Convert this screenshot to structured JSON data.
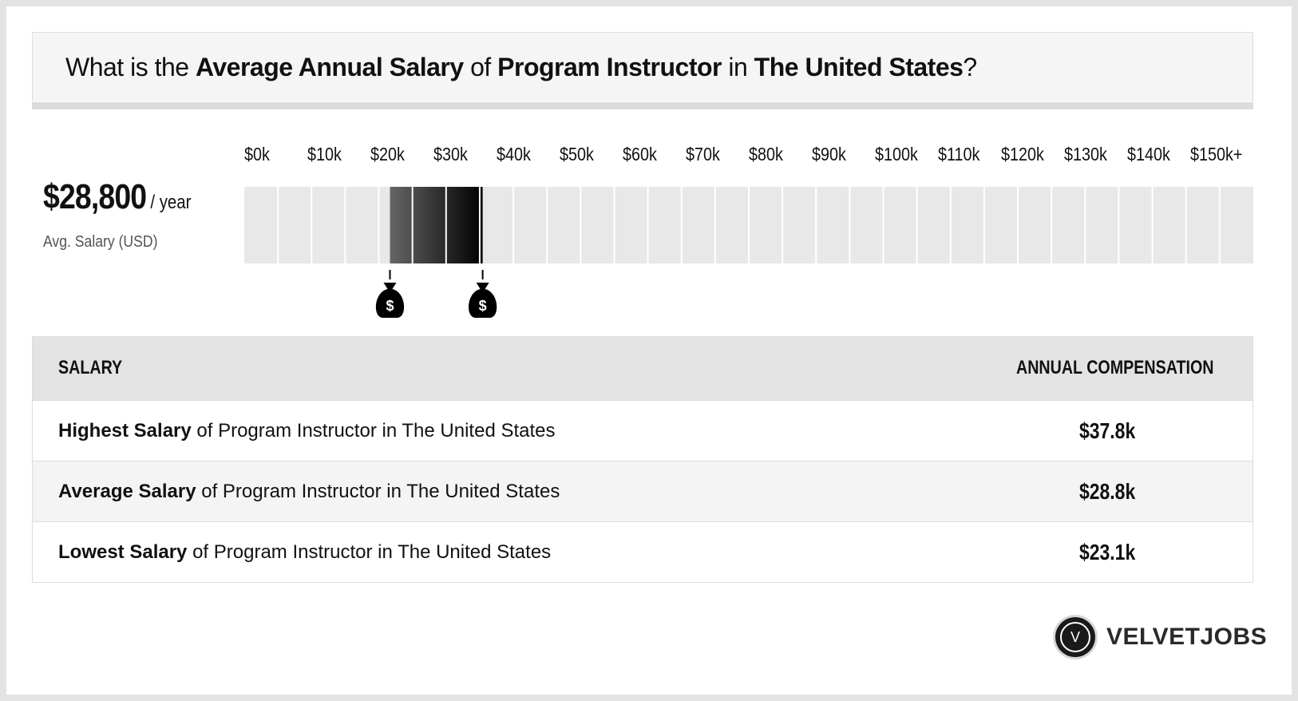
{
  "heading": {
    "part1": "What is the ",
    "bold1": "Average Annual Salary",
    "part2": " of ",
    "bold2": "Program Instructor",
    "part3": " in ",
    "bold3": "The United States",
    "part4": "?"
  },
  "summary": {
    "value": "$28,800",
    "unit": "/ year",
    "label": "Avg. Salary (USD)"
  },
  "chart_data": {
    "type": "bar",
    "categories": [
      "$0k",
      "$10k",
      "$20k",
      "$30k",
      "$40k",
      "$50k",
      "$60k",
      "$70k",
      "$80k",
      "$90k",
      "$100k",
      "$110k",
      "$120k",
      "$130k",
      "$140k",
      "$150k+"
    ],
    "range": {
      "low": 23100,
      "average": 28800,
      "high": 37800
    },
    "xlim": [
      0,
      160000
    ],
    "markers": [
      {
        "value": 23100,
        "icon": "money-bag-icon",
        "symbol": "$"
      },
      {
        "value": 37800,
        "icon": "money-bag-icon",
        "symbol": "$"
      }
    ],
    "colors": {
      "track": "#e8e8e8",
      "gridline": "#ffffff",
      "range_start": "#666666",
      "range_end": "#000000"
    }
  },
  "table": {
    "header_left": "SALARY",
    "header_right": "ANNUAL COMPENSATION",
    "rows": [
      {
        "bold": "Highest Salary",
        "rest": " of Program Instructor in The United States",
        "value": "$37.8k"
      },
      {
        "bold": "Average Salary",
        "rest": " of Program Instructor in The United States",
        "value": "$28.8k"
      },
      {
        "bold": "Lowest Salary",
        "rest": " of Program Instructor in The United States",
        "value": "$23.1k"
      }
    ]
  },
  "brand": {
    "logo_letter": "V",
    "name": "VELVETJOBS"
  }
}
